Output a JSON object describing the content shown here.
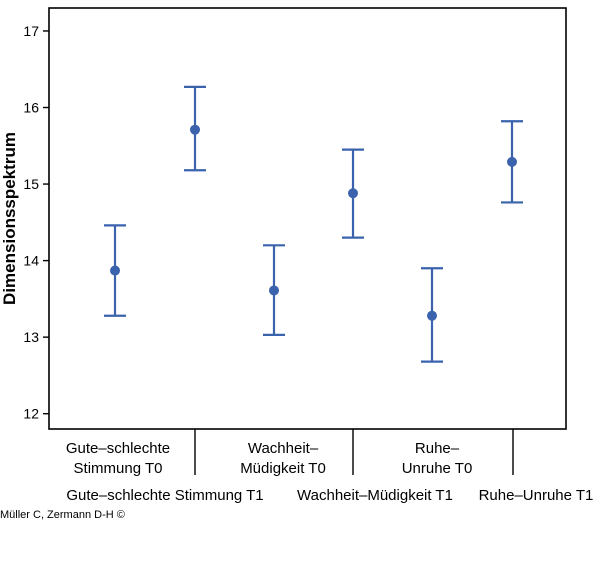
{
  "chart_data": {
    "type": "scatter",
    "subtype": "error-bar",
    "ylabel": "Dimensionsspektrum",
    "ylim": [
      11.8,
      17.3
    ],
    "y_ticks": [
      12,
      13,
      14,
      15,
      16,
      17
    ],
    "categories": [
      [
        "Gute–schlechte",
        "Stimmung T0"
      ],
      [
        "Gute–schlechte Stimmung T1"
      ],
      [
        "Wachheit–",
        "Müdigkeit T0"
      ],
      [
        "Wachheit–Müdigkeit T1"
      ],
      [
        "Ruhe–",
        "Unruhe T0"
      ],
      [
        "Ruhe–Unruhe T1"
      ]
    ],
    "points": [
      {
        "mean": 13.87,
        "lower": 13.28,
        "upper": 14.46
      },
      {
        "mean": 15.71,
        "lower": 15.18,
        "upper": 16.27
      },
      {
        "mean": 13.61,
        "lower": 13.03,
        "upper": 14.2
      },
      {
        "mean": 14.88,
        "lower": 14.3,
        "upper": 15.45
      },
      {
        "mean": 13.28,
        "lower": 12.68,
        "upper": 13.9
      },
      {
        "mean": 15.29,
        "lower": 14.76,
        "upper": 15.82
      }
    ],
    "grid": false,
    "color": "#3a62ad"
  },
  "credit": "Müller C, Zermann D-H ©"
}
